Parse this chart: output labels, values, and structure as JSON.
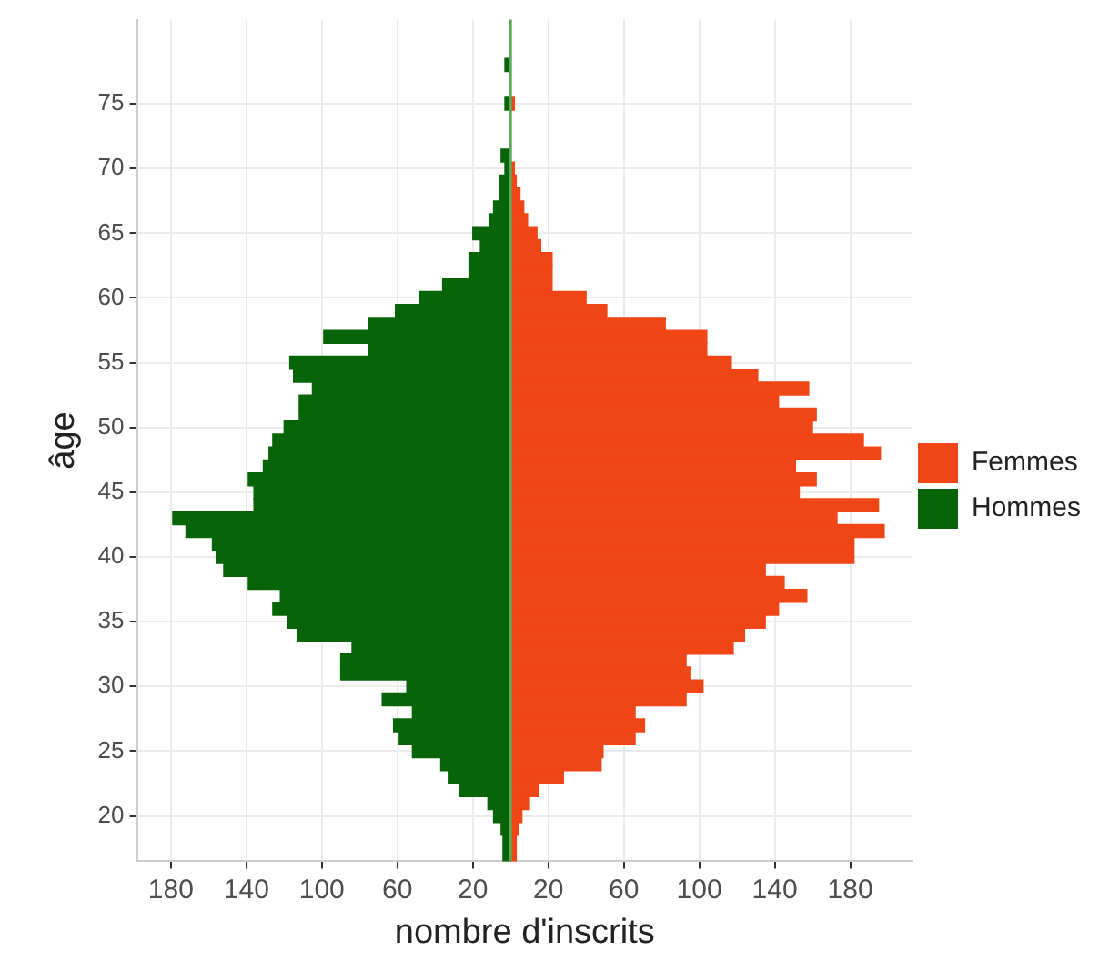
{
  "chart_data": {
    "type": "bar",
    "orientation": "horizontal",
    "stacked": true,
    "xlabel": "nombre d'inscrits",
    "ylabel": "âge",
    "categories": [
      null,
      null,
      null,
      null,
      null,
      null,
      "75",
      null,
      null,
      null,
      null,
      "70",
      null,
      null,
      null,
      null,
      "65",
      null,
      null,
      null,
      null,
      "60",
      null,
      null,
      null,
      null,
      "55",
      null,
      null,
      null,
      null,
      "50",
      null,
      null,
      null,
      null,
      "45",
      null,
      null,
      null,
      null,
      "40",
      null,
      null,
      null,
      null,
      "35",
      null,
      null,
      null,
      null,
      "30",
      null,
      null,
      null,
      null,
      "25",
      null,
      null,
      null,
      null,
      "20",
      null,
      null,
      null
    ],
    "series": [
      {
        "name": "Femmes",
        "color": "#f04515",
        "values": [
          null,
          null,
          null,
          null,
          null,
          null,
          2,
          null,
          null,
          null,
          null,
          2,
          3,
          5,
          7,
          9,
          14,
          16,
          22,
          22,
          22,
          40,
          51,
          82,
          104,
          104,
          117,
          131,
          158,
          142,
          162,
          160,
          187,
          196,
          151,
          162,
          153,
          195,
          173,
          198,
          182,
          182,
          135,
          145,
          157,
          142,
          135,
          124,
          118,
          93,
          95,
          102,
          93,
          66,
          71,
          66,
          49,
          48,
          28,
          15,
          10,
          6,
          4,
          3,
          3
        ]
      },
      {
        "name": "Hommes",
        "color": "#086408",
        "values": [
          null,
          null,
          null,
          -3,
          null,
          null,
          -3,
          null,
          null,
          null,
          -5,
          -3,
          -6,
          -6,
          -9,
          -11,
          -20,
          -16,
          -22,
          -22,
          -36,
          -48,
          -61,
          -75,
          -99,
          -75,
          -117,
          -115,
          -105,
          -112,
          -112,
          -120,
          -126,
          -128,
          -131,
          -139,
          -136,
          -136,
          -179,
          -172,
          -158,
          -156,
          -152,
          -139,
          -122,
          -126,
          -118,
          -113,
          -84,
          -90,
          -90,
          -55,
          -68,
          -52,
          -62,
          -59,
          -52,
          -37,
          -33,
          -27,
          -12,
          -9,
          -5,
          -4,
          -4
        ]
      }
    ],
    "xlim": [
      -198,
      213
    ],
    "xticks": [
      {
        "value": -180,
        "label": "180"
      },
      {
        "value": -140,
        "label": "140"
      },
      {
        "value": -100,
        "label": "100"
      },
      {
        "value": -60,
        "label": "60"
      },
      {
        "value": -20,
        "label": "20"
      },
      20,
      60,
      100,
      140,
      180
    ],
    "ref_lines": [
      {
        "axis": "x",
        "value": 0,
        "color": "#5aa85a"
      }
    ],
    "grid": true,
    "legend": "right"
  }
}
